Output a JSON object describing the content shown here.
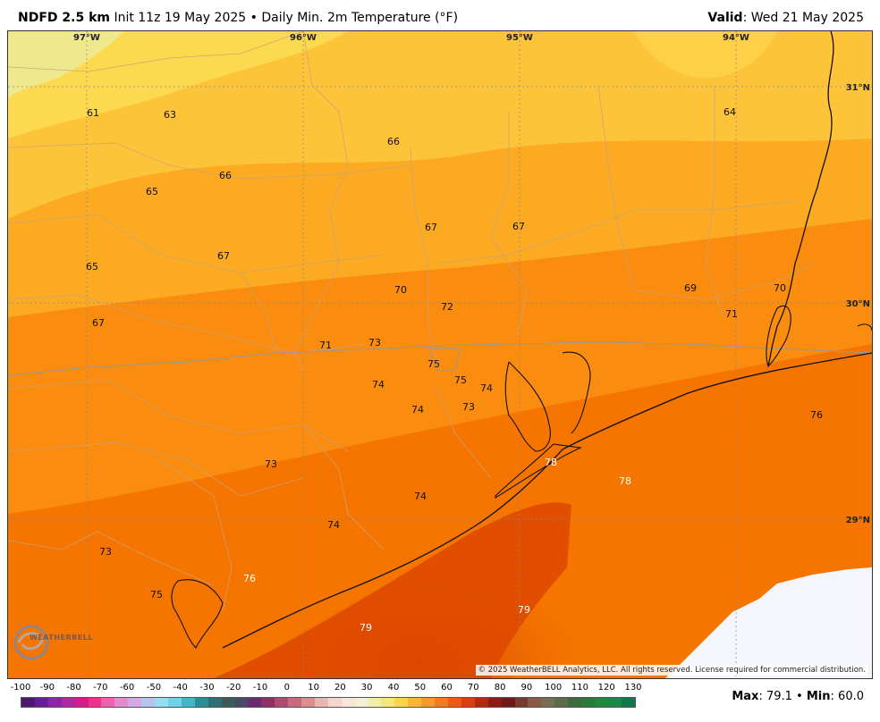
{
  "header": {
    "model": "NDFD 2.5 km",
    "init": "Init 11z 19 May 2025",
    "bullet": "•",
    "product": "Daily Min. 2m Temperature (°F)",
    "valid_label": "Valid",
    "valid_date": ": Wed 21 May 2025"
  },
  "map": {
    "longitudes": [
      "97°W",
      "96°W",
      "95°W",
      "94°W"
    ],
    "latitudes": [
      "31°N",
      "30°N",
      "29°N"
    ],
    "station_values": [
      {
        "v": "61",
        "light": false
      },
      {
        "v": "63",
        "light": false
      },
      {
        "v": "66",
        "light": false
      },
      {
        "v": "64",
        "light": false
      },
      {
        "v": "65",
        "light": false
      },
      {
        "v": "66",
        "light": false
      },
      {
        "v": "67",
        "light": false
      },
      {
        "v": "67",
        "light": false
      },
      {
        "v": "65",
        "light": false
      },
      {
        "v": "67",
        "light": false
      },
      {
        "v": "70",
        "light": false
      },
      {
        "v": "72",
        "light": false
      },
      {
        "v": "69",
        "light": false
      },
      {
        "v": "70",
        "light": false
      },
      {
        "v": "71",
        "light": false
      },
      {
        "v": "67",
        "light": false
      },
      {
        "v": "71",
        "light": false
      },
      {
        "v": "73",
        "light": false
      },
      {
        "v": "75",
        "light": false
      },
      {
        "v": "75",
        "light": false
      },
      {
        "v": "74",
        "light": false
      },
      {
        "v": "74",
        "light": false
      },
      {
        "v": "73",
        "light": false
      },
      {
        "v": "74",
        "light": false
      },
      {
        "v": "76",
        "light": false
      },
      {
        "v": "78",
        "light": true
      },
      {
        "v": "78",
        "light": true
      },
      {
        "v": "73",
        "light": false
      },
      {
        "v": "74",
        "light": false
      },
      {
        "v": "74",
        "light": false
      },
      {
        "v": "73",
        "light": false
      },
      {
        "v": "76",
        "light": true
      },
      {
        "v": "75",
        "light": false
      },
      {
        "v": "79",
        "light": true
      },
      {
        "v": "79",
        "light": true
      }
    ],
    "copyright": "© 2025 WeatherBELL Analytics, LLC. All rights reserved. License required for commercial distribution.",
    "logo": "WEATHERBELL"
  },
  "legend": {
    "ticks": [
      "-100",
      "-90",
      "-80",
      "-70",
      "-60",
      "-50",
      "-40",
      "-30",
      "-20",
      "-10",
      "0",
      "10",
      "20",
      "30",
      "40",
      "50",
      "60",
      "70",
      "80",
      "90",
      "100",
      "110",
      "120",
      "130"
    ],
    "colors": [
      "#4b1a6e",
      "#6a1b9a",
      "#8e24aa",
      "#b0279f",
      "#d81b8c",
      "#f0308a",
      "#f060b0",
      "#e58ad0",
      "#d7a6e6",
      "#b9c3f0",
      "#94def4",
      "#6fd3e8",
      "#3fb8c8",
      "#2b8f96",
      "#2e6f74",
      "#3d5a5a",
      "#4a4a68",
      "#6a2b6e",
      "#8e2f6a",
      "#b04a72",
      "#c96a7a",
      "#dc8e8e",
      "#e9b5b0",
      "#f3d6d0",
      "#f6e6d9",
      "#f2efd2",
      "#eef0a8",
      "#f5e77a",
      "#fbd44a",
      "#fbb733",
      "#f9982b",
      "#f67a1c",
      "#ee5a12",
      "#d9400c",
      "#b52a0d",
      "#8e1a10",
      "#6e1a18",
      "#7b3a2e",
      "#8a5a44",
      "#7a6e52",
      "#5e6a4a",
      "#3e6a40",
      "#2a7a3a",
      "#1f8a3e",
      "#178a48",
      "#11784a"
    ],
    "max_label": "Max",
    "max_value": ": 79.1",
    "sep": "•",
    "min_label": "Min",
    "min_value": ": 60.0"
  }
}
